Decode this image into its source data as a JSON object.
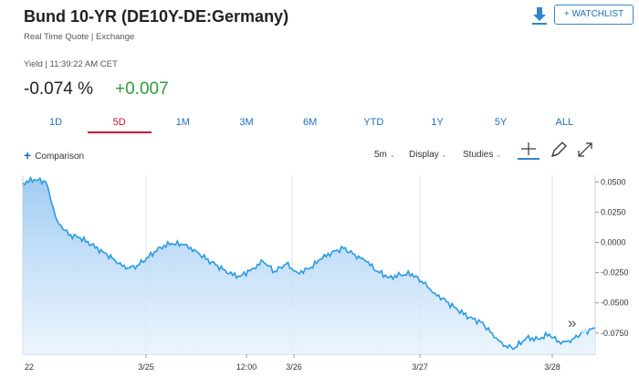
{
  "header": {
    "title": "Bund 10-YR  (DE10Y-DE:Germany)",
    "subtitle": "Real Time Quote | Exchange",
    "watchlist_label": "+ WATCHLIST",
    "download_icon": "download-icon"
  },
  "quote": {
    "yield_line": "Yield | 11:39:22 AM CET",
    "price": "-0.074 %",
    "change": "+0.007",
    "change_color": "#2e9e3e"
  },
  "tabs": [
    {
      "label": "1D",
      "active": false
    },
    {
      "label": "5D",
      "active": true
    },
    {
      "label": "1M",
      "active": false
    },
    {
      "label": "3M",
      "active": false
    },
    {
      "label": "6M",
      "active": false
    },
    {
      "label": "YTD",
      "active": false
    },
    {
      "label": "1Y",
      "active": false
    },
    {
      "label": "5Y",
      "active": false
    },
    {
      "label": "ALL",
      "active": false
    }
  ],
  "toolbar": {
    "comparison_label": "Comparison",
    "interval_label": "5m",
    "display_label": "Display",
    "studies_label": "Studies",
    "icons": [
      "crosshair-icon",
      "pencil-icon",
      "expand-icon"
    ]
  },
  "colors": {
    "accent": "#1f6fb8",
    "active_tab": "#c8102e",
    "line": "#2a9ae0"
  },
  "chart_data": {
    "type": "area",
    "y_ticks": [
      "0.0500",
      "0.0250",
      "0.0000",
      "-0.0250",
      "-0.0500",
      "-0.0750"
    ],
    "ylim": [
      -0.0925,
      0.0555
    ],
    "x_ticks": [
      "22",
      "3/25",
      "12:00",
      "3/26",
      "3/27",
      "3/28"
    ],
    "grid": "vertical",
    "series": [
      {
        "x": [
          0,
          2,
          4,
          6,
          8,
          10,
          12,
          14,
          16,
          18,
          20,
          22,
          24,
          26,
          28,
          30,
          32,
          34,
          36,
          38,
          40,
          42,
          44,
          46,
          48,
          50,
          52,
          54,
          56,
          58,
          60,
          62,
          64,
          66,
          68,
          70,
          72,
          74,
          76,
          78,
          80,
          82,
          84,
          86,
          88,
          90,
          92,
          94,
          96,
          98,
          100
        ],
        "values": [
          0.049,
          0.052,
          0.05,
          0.018,
          0.006,
          0.004,
          -0.002,
          -0.008,
          -0.014,
          -0.022,
          -0.019,
          -0.012,
          -0.004,
          -0.001,
          -0.002,
          -0.006,
          -0.014,
          -0.019,
          -0.026,
          -0.028,
          -0.022,
          -0.016,
          -0.024,
          -0.018,
          -0.025,
          -0.022,
          -0.014,
          -0.008,
          -0.005,
          -0.01,
          -0.016,
          -0.024,
          -0.029,
          -0.027,
          -0.026,
          -0.034,
          -0.042,
          -0.049,
          -0.056,
          -0.062,
          -0.066,
          -0.075,
          -0.086,
          -0.087,
          -0.079,
          -0.08,
          -0.076,
          -0.084,
          -0.08,
          -0.074,
          -0.071
        ]
      }
    ]
  }
}
